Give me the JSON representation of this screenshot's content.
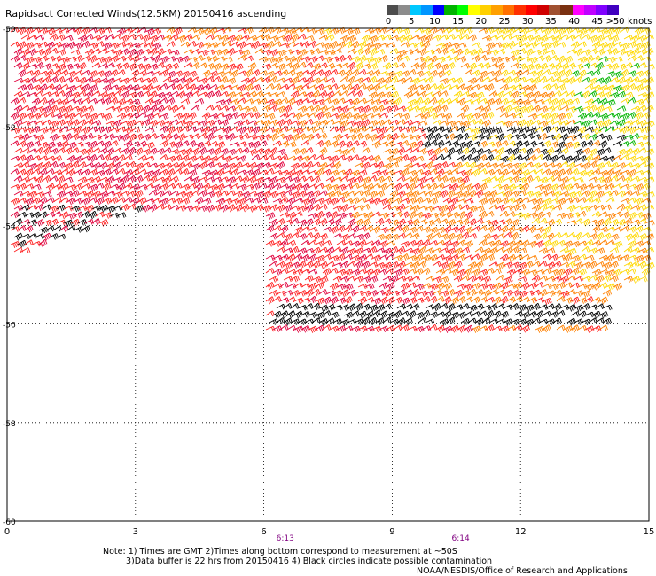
{
  "title": "Rapidsact Corrected Winds(12.5KM) 20150416 ascending",
  "legend": {
    "labels": [
      "0",
      "5",
      "10",
      "15",
      "20",
      "25",
      "30",
      "35",
      "40",
      "45",
      ">50"
    ],
    "unit": "knots",
    "colors": [
      "#4d4d4d",
      "#8c8c8c",
      "#00c8ff",
      "#0096ff",
      "#0000ff",
      "#00b400",
      "#00ff00",
      "#ffff00",
      "#ffd000",
      "#ffa000",
      "#ff7000",
      "#ff3000",
      "#ff0000",
      "#d00000",
      "#a05030",
      "#7a3010",
      "#ff00ff",
      "#c000ff",
      "#8000ff",
      "#4000c0"
    ]
  },
  "axes": {
    "x_ticks": [
      "0",
      "3",
      "6",
      "9",
      "12",
      "15"
    ],
    "y_ticks": [
      "-50",
      "-52",
      "-54",
      "-56",
      "-58",
      "-60"
    ],
    "x_range": [
      0,
      15
    ],
    "y_range": [
      -60,
      -50
    ]
  },
  "times": [
    {
      "label": "6:13",
      "lon": 6.5
    },
    {
      "label": "6:14",
      "lon": 10.6
    }
  ],
  "notes": {
    "line1": "Note: 1) Times are GMT 2)Times along bottom correspond to measurement at ~50S",
    "line2": "3)Data buffer is 22 hrs from 20150416 4) Black circles indicate possible contamination"
  },
  "credit": "NOAA/NESDIS/Office of Research and Applications",
  "wind_colors": {
    "black": "#000000",
    "green": "#00b400",
    "yellow": "#ffd800",
    "orange": "#ff8000",
    "red": "#ff2020",
    "crimson": "#e0003c"
  }
}
